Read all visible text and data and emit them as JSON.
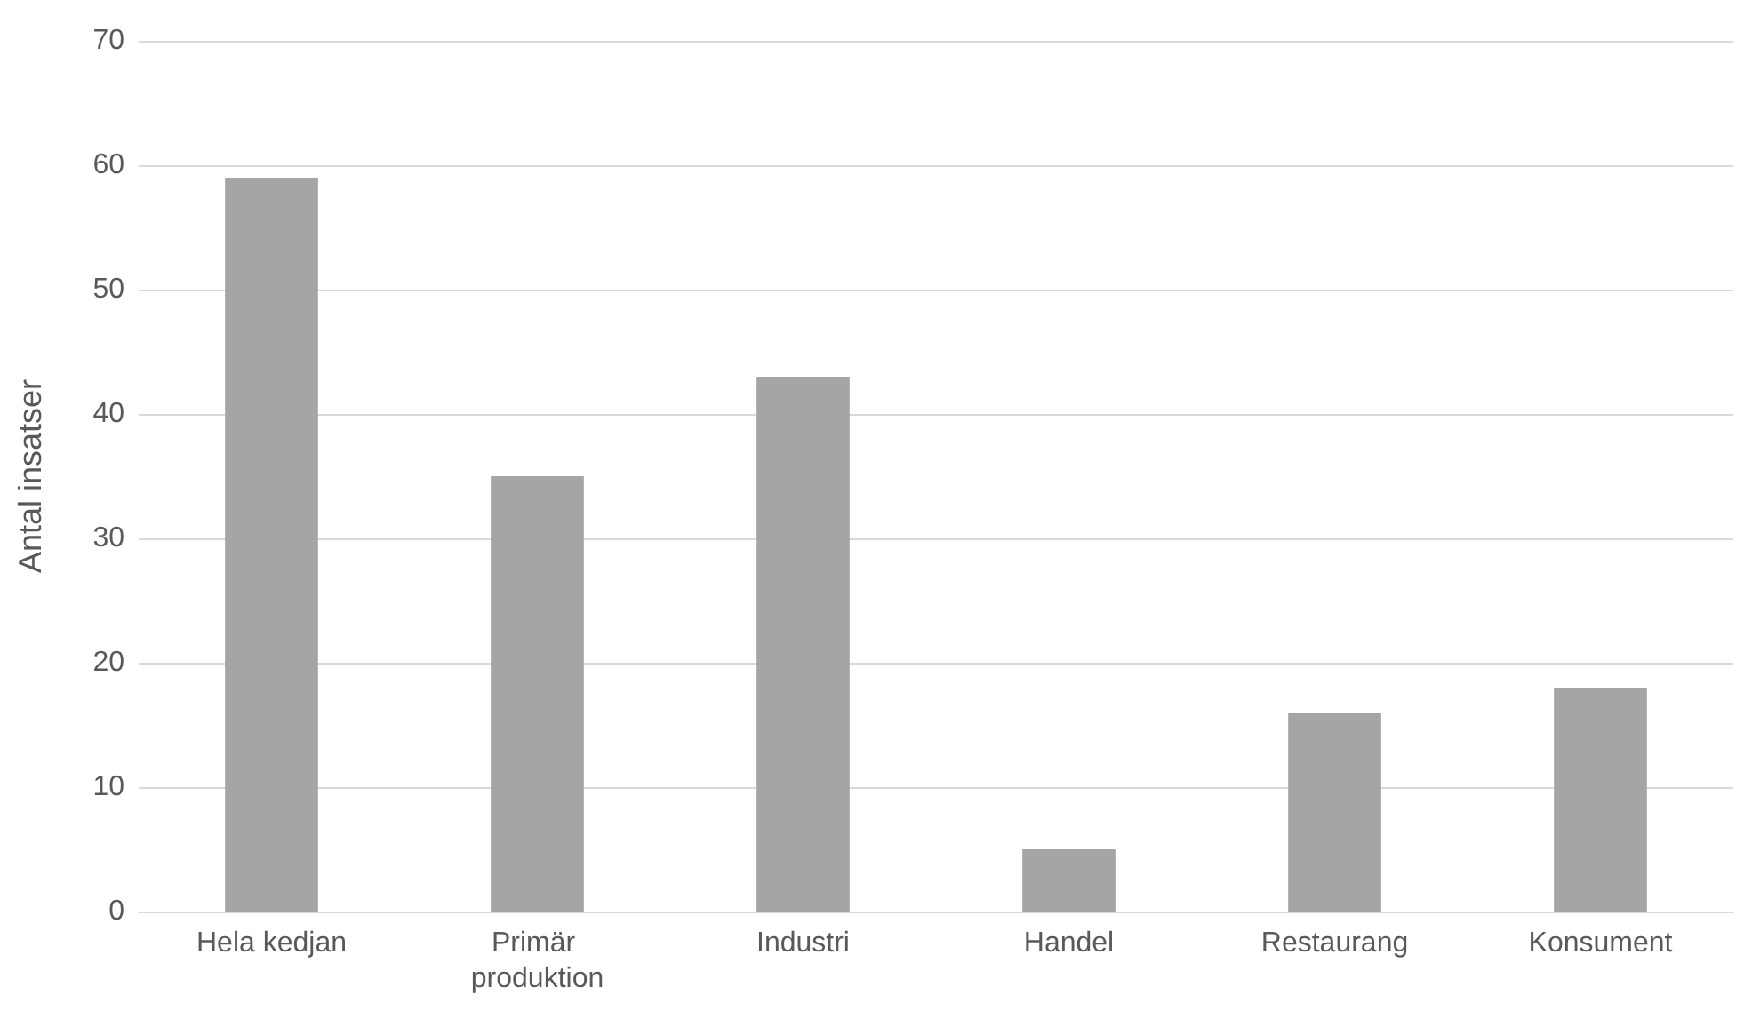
{
  "chart_data": {
    "type": "bar",
    "ylabel": "Antal insatser",
    "categories": [
      "Hela kedjan",
      "Primär produktion",
      "Industri",
      "Handel",
      "Restaurang",
      "Konsument"
    ],
    "values": [
      59,
      35,
      43,
      5,
      16,
      18
    ],
    "color": "#a5a5a5",
    "ylim": [
      0,
      70
    ],
    "yticks": [
      0,
      10,
      20,
      30,
      40,
      50,
      60,
      70
    ],
    "grid": "y"
  }
}
